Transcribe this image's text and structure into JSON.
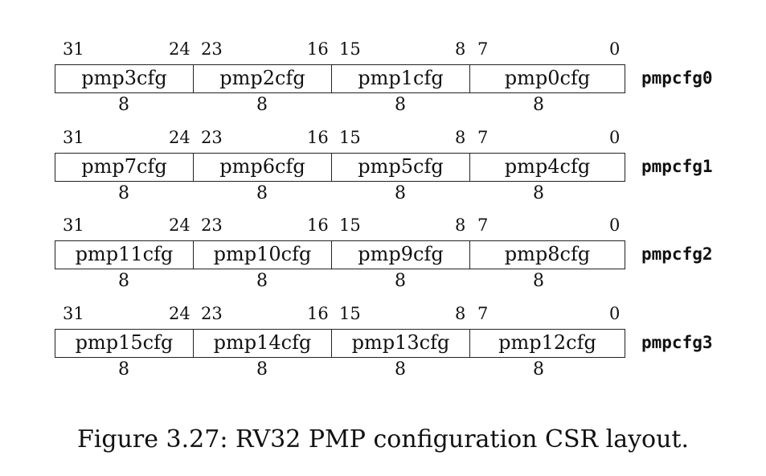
{
  "registers": [
    {
      "name": "pmpcfg0",
      "fields": [
        {
          "label": "pmp3cfg",
          "hi": "31",
          "lo": "24",
          "width": "8"
        },
        {
          "label": "pmp2cfg",
          "hi": "23",
          "lo": "16",
          "width": "8"
        },
        {
          "label": "pmp1cfg",
          "hi": "15",
          "lo": "8",
          "width": "8"
        },
        {
          "label": "pmp0cfg",
          "hi": "7",
          "lo": "0",
          "width": "8"
        }
      ]
    },
    {
      "name": "pmpcfg1",
      "fields": [
        {
          "label": "pmp7cfg",
          "hi": "31",
          "lo": "24",
          "width": "8"
        },
        {
          "label": "pmp6cfg",
          "hi": "23",
          "lo": "16",
          "width": "8"
        },
        {
          "label": "pmp5cfg",
          "hi": "15",
          "lo": "8",
          "width": "8"
        },
        {
          "label": "pmp4cfg",
          "hi": "7",
          "lo": "0",
          "width": "8"
        }
      ]
    },
    {
      "name": "pmpcfg2",
      "fields": [
        {
          "label": "pmp11cfg",
          "hi": "31",
          "lo": "24",
          "width": "8"
        },
        {
          "label": "pmp10cfg",
          "hi": "23",
          "lo": "16",
          "width": "8"
        },
        {
          "label": "pmp9cfg",
          "hi": "15",
          "lo": "8",
          "width": "8"
        },
        {
          "label": "pmp8cfg",
          "hi": "7",
          "lo": "0",
          "width": "8"
        }
      ]
    },
    {
      "name": "pmpcfg3",
      "fields": [
        {
          "label": "pmp15cfg",
          "hi": "31",
          "lo": "24",
          "width": "8"
        },
        {
          "label": "pmp14cfg",
          "hi": "23",
          "lo": "16",
          "width": "8"
        },
        {
          "label": "pmp13cfg",
          "hi": "15",
          "lo": "8",
          "width": "8"
        },
        {
          "label": "pmp12cfg",
          "hi": "7",
          "lo": "0",
          "width": "8"
        }
      ]
    }
  ],
  "caption": "Figure 3.27: RV32 PMP configuration CSR layout."
}
